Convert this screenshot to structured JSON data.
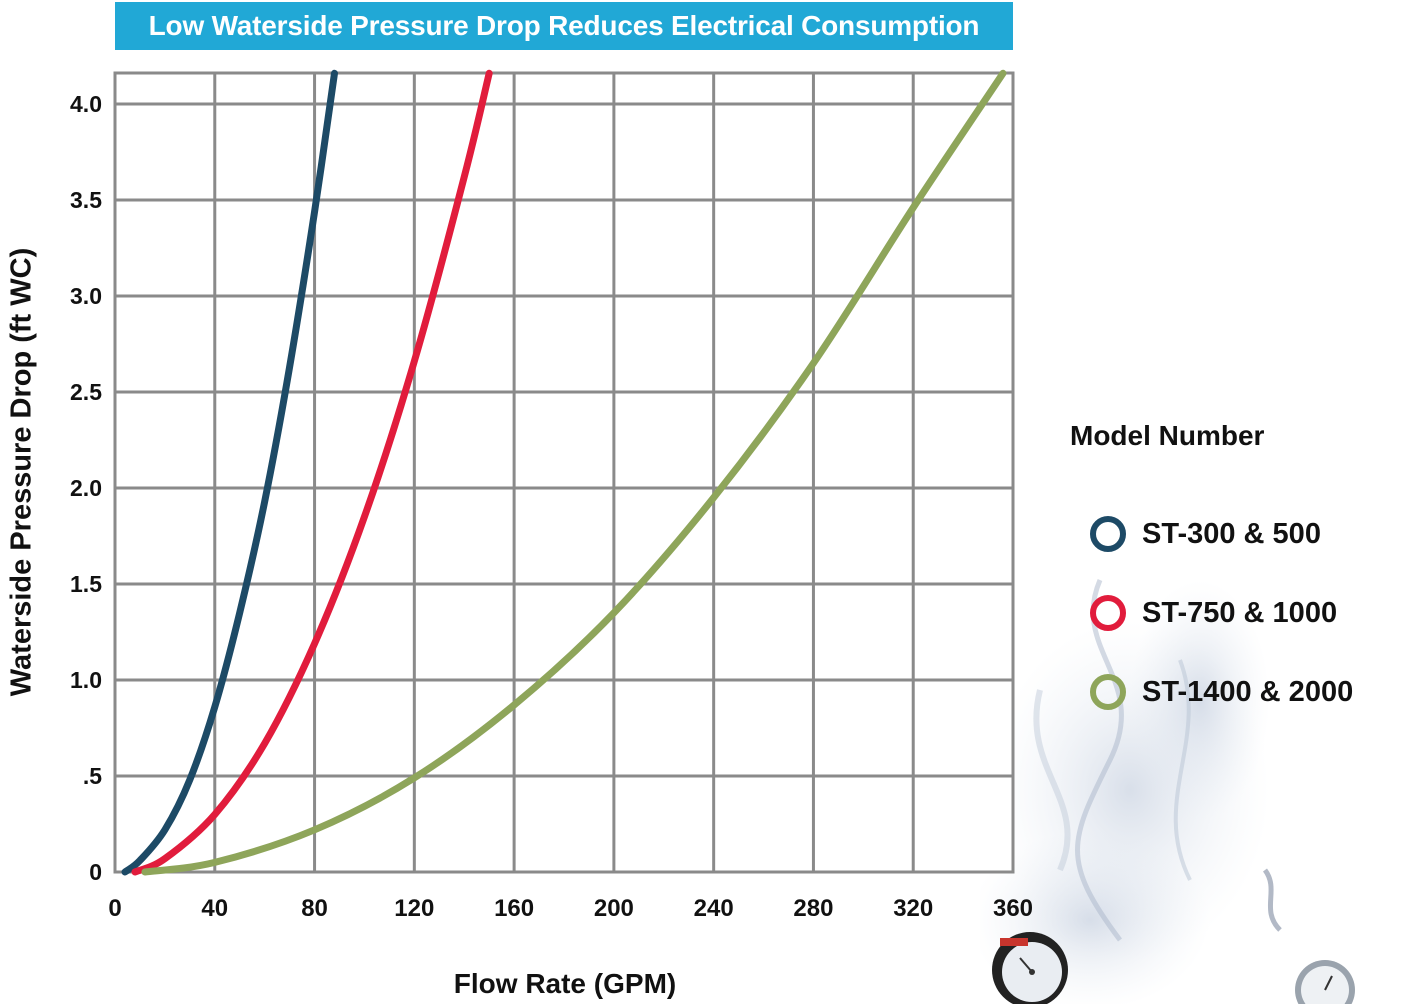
{
  "title": "Low Waterside Pressure Drop Reduces Electrical Consumption",
  "legend": {
    "title": "Model Number",
    "items": [
      {
        "label": "ST-300 & 500",
        "color": "#1d4a66"
      },
      {
        "label": "ST-750 & 1000",
        "color": "#e11c3c"
      },
      {
        "label": "ST-1400 & 2000",
        "color": "#8ea55a"
      }
    ]
  },
  "chart_data": {
    "type": "line",
    "title": "Low Waterside Pressure Drop Reduces Electrical Consumption",
    "xlabel": "Flow Rate (GPM)",
    "ylabel": "Waterside Pressure Drop (ft WC)",
    "xlim": [
      0,
      360
    ],
    "ylim": [
      0,
      4.0
    ],
    "x_ticks": [
      0,
      40,
      80,
      120,
      160,
      200,
      240,
      280,
      320,
      360
    ],
    "x_tick_labels": [
      "0",
      "40",
      "80",
      "120",
      "160",
      "200",
      "240",
      "280",
      "320",
      "360"
    ],
    "y_ticks": [
      0,
      0.5,
      1.0,
      1.5,
      2.0,
      2.5,
      3.0,
      3.5,
      4.0
    ],
    "y_tick_labels": [
      "0",
      ".5",
      "1.0",
      "1.5",
      "2.0",
      "2.5",
      "3.0",
      "3.5",
      "4.0"
    ],
    "grid": true,
    "legend_position": "right",
    "series": [
      {
        "name": "ST-300 & 500",
        "color": "#1d4a66",
        "x": [
          4,
          10,
          20,
          30,
          40,
          50,
          60,
          70,
          80,
          88
        ],
        "y": [
          0.0,
          0.06,
          0.22,
          0.48,
          0.86,
          1.35,
          1.93,
          2.63,
          3.44,
          4.16
        ]
      },
      {
        "name": "ST-750 & 1000",
        "color": "#e11c3c",
        "x": [
          8,
          20,
          40,
          60,
          80,
          100,
          120,
          140,
          150
        ],
        "y": [
          0.0,
          0.07,
          0.3,
          0.67,
          1.19,
          1.85,
          2.66,
          3.62,
          4.16
        ]
      },
      {
        "name": "ST-1400 & 2000",
        "color": "#8ea55a",
        "x": [
          12,
          40,
          80,
          120,
          160,
          200,
          240,
          280,
          320,
          356
        ],
        "y": [
          0.0,
          0.05,
          0.22,
          0.49,
          0.87,
          1.35,
          1.95,
          2.65,
          3.46,
          4.16
        ]
      }
    ]
  }
}
